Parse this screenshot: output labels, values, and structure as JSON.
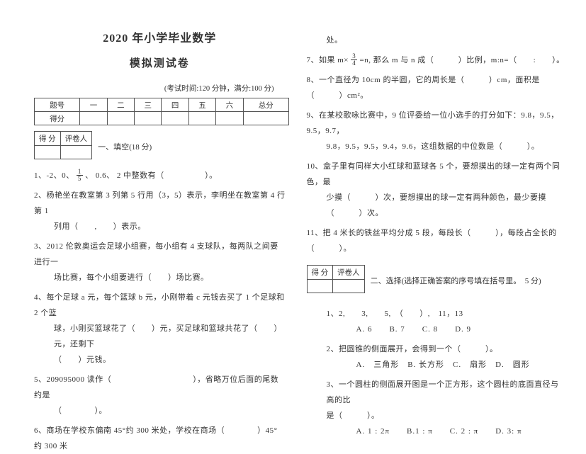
{
  "title_line1": "2020 年小学毕业数学",
  "title_line2": "模拟测试卷",
  "exam_info": "(考试时间:120 分钟，满分:100 分)",
  "score_table": {
    "headers": [
      "题号",
      "一",
      "二",
      "三",
      "四",
      "五",
      "六",
      "总分"
    ],
    "row_label": "得分"
  },
  "mini_table": {
    "c1": "得 分",
    "c2": "评卷人"
  },
  "section1_title": "一、填空(18 分)",
  "q1_a": "1、-2、0、",
  "q1_frac_n": "1",
  "q1_frac_d": "5",
  "q1_b": "、 0.6、 2 中整数有（　　　　　）。",
  "q2": "2、杨艳坐在教室第 3 列第 5 行用（3，5）表示，李明坐在教室第 4 行第 1",
  "q2b": "列用（　　,　　）表示。",
  "q3": "3、2012 伦敦奥运会足球小组赛，每小组有 4 支球队，每两队之间要进行一",
  "q3b": "场比赛，每个小组要进行（　　）场比赛。",
  "q4": "4、每个足球 a 元，每个篮球 b 元，小刚带着 c 元钱去买了 1 个足球和 2 个篮",
  "q4b": "球，小刚买篮球花了（　　）元，买足球和篮球共花了（　　）元，还剩下",
  "q4c": "（　　）元钱。",
  "q5": "5、209095000 读作（　　　　　　　　　　），省略万位后面的尾数约是",
  "q5b": "（　　　　）。",
  "q6": "6、商场在学校东偏南 45°约 300 米处，学校在商场（　　　　）45°约 300 米",
  "r_q6b": "处。",
  "r_q7a": "7、如果 m×",
  "r_q7_frac_n": "3",
  "r_q7_frac_d": "4",
  "r_q7b": "=n, 那么 m 与 n 成（　　　）比例，m:n=（　　:　　）。",
  "r_q8": "8、一个直径为 10cm 的半圆，它的周长是（　　　）cm，面积是（　　　）cm²。",
  "r_q9": "9、在某校歌咏比赛中，9 位评委给一位小选手的打分如下：9.8，9.5，9.5，9.7，",
  "r_q9b": "9.8，9.5，9.5，9.4，9.6，这组数据的中位数是（　　　）。",
  "r_q10": "10、盒子里有同样大小红球和蓝球各 5 个，要想摸出的球一定有两个同色，最",
  "r_q10b": "少摸（　　　）次，要想摸出的球一定有两种颜色，最少要摸（　　　）次。",
  "r_q11": "11、把 4 米长的铁丝平均分成 5 段，每段长（　　　），每段占全长的（　　　）。",
  "section2_title": "二、选择(选择正确答案的序号填在括号里。　5 分)",
  "s2_q1": "1、2,　　3,　　5,　（　　）,　11，13",
  "s2_q1_opts": "A. 6　　B. 7　　C. 8　　D. 9",
  "s2_q2": "2、把圆锥的侧面展开，会得到一个（　　　）。",
  "s2_q2_opts": "A.　三角形　B. 长方形　C.　扇形　D.　圆形",
  "s2_q3": "3、一个圆柱的侧面展开图是一个正方形，这个圆柱的底面直径与高的比",
  "s2_q3b": "是（　　　）。",
  "s2_q3_opts": "A. 1 : 2π　　B.1 : π　　C. 2 : π　　D. 3: π"
}
